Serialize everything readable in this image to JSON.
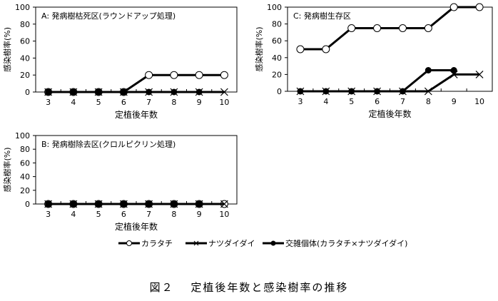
{
  "chart_data": [
    {
      "type": "line",
      "title": "A:  発病樹枯死区(ラウンドアップ処理)",
      "xlabel": "定植後年数",
      "ylabel": "感染樹率(%)",
      "ylim": [
        0,
        100
      ],
      "categories": [
        "3",
        "4",
        "5",
        "6",
        "7",
        "8",
        "9",
        "10"
      ],
      "yticks": [
        "0",
        "20",
        "40",
        "60",
        "80",
        "100"
      ],
      "series": [
        {
          "name": "カラタチ",
          "values": [
            0,
            0,
            0,
            0,
            20,
            20,
            20,
            20
          ]
        },
        {
          "name": "ナツダイダイ",
          "values": [
            0,
            0,
            0,
            0,
            0,
            0,
            0,
            0
          ]
        },
        {
          "name": "交雑個体",
          "values": [
            0,
            0,
            0,
            0,
            0,
            0,
            0,
            null
          ]
        }
      ]
    },
    {
      "type": "line",
      "title": "C: 発病樹生存区",
      "xlabel": "定植後年数",
      "ylabel": "感染樹率(%)",
      "ylim": [
        0,
        100
      ],
      "categories": [
        "3",
        "4",
        "5",
        "6",
        "7",
        "8",
        "9",
        "10"
      ],
      "yticks": [
        "0",
        "20",
        "40",
        "60",
        "80",
        "100"
      ],
      "series": [
        {
          "name": "カラタチ",
          "values": [
            50,
            50,
            75,
            75,
            75,
            75,
            100,
            100
          ]
        },
        {
          "name": "ナツダイダイ",
          "values": [
            0,
            0,
            0,
            0,
            0,
            0,
            20,
            20
          ]
        },
        {
          "name": "交雑個体",
          "values": [
            0,
            0,
            0,
            0,
            0,
            25,
            25,
            null
          ]
        }
      ]
    },
    {
      "type": "line",
      "title": "B:  発病樹除去区(クロルピクリン処理)",
      "xlabel": "定植後年数",
      "ylabel": "感染樹率(%)",
      "ylim": [
        0,
        100
      ],
      "categories": [
        "3",
        "4",
        "5",
        "6",
        "7",
        "8",
        "9",
        "10"
      ],
      "yticks": [
        "0",
        "20",
        "40",
        "60",
        "80",
        "100"
      ],
      "series": [
        {
          "name": "カラタチ",
          "values": [
            0,
            0,
            0,
            0,
            0,
            0,
            0,
            0
          ]
        },
        {
          "name": "ナツダイダイ",
          "values": [
            0,
            0,
            0,
            0,
            0,
            0,
            0,
            0
          ]
        },
        {
          "name": "交雑個体",
          "values": [
            0,
            0,
            0,
            0,
            0,
            0,
            0,
            null
          ]
        }
      ]
    }
  ],
  "legend": [
    "カラタチ",
    "ナツダイダイ",
    "交雑個体(カラタチ×ナツダイダイ)"
  ],
  "caption": "図２　 定植後年数と感染樹率の推移"
}
